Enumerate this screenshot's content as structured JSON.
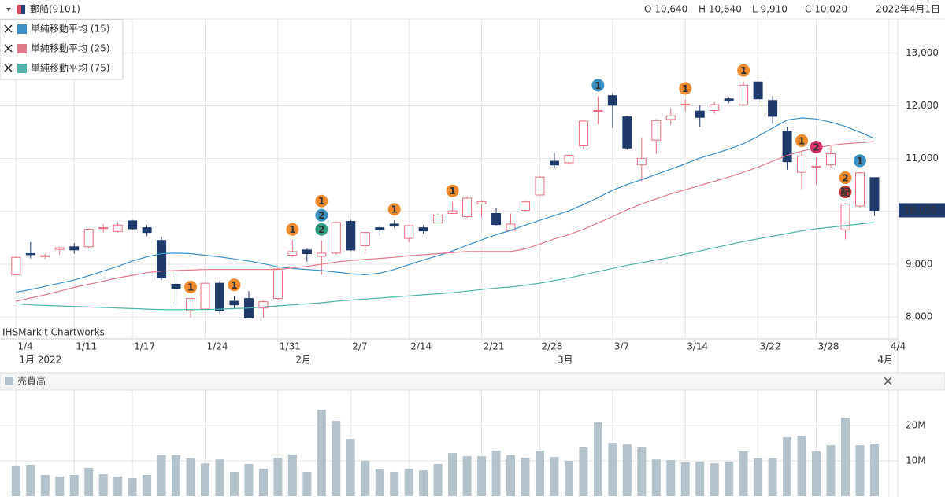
{
  "header": {
    "title": "郵船(9101)",
    "ohlc": [
      "O 10,640",
      "H 10,640",
      "L 9,910",
      "C 10,020"
    ],
    "date": "2022年4月1日",
    "watermark": "IHSMarkit Chartworks"
  },
  "chart_data": [
    {
      "type": "candlestick",
      "xlim": [
        -1.1,
        60.6
      ],
      "xticks": [
        {
          "value": 0,
          "label": "1/4"
        },
        {
          "value": 4,
          "label": "1/11"
        },
        {
          "value": 8,
          "label": "1/17"
        },
        {
          "value": 13,
          "label": "1/24"
        },
        {
          "value": 18,
          "label": "1/31"
        },
        {
          "value": 23,
          "label": "2/7"
        },
        {
          "value": 27,
          "label": "2/14"
        },
        {
          "value": 32,
          "label": "2/21"
        },
        {
          "value": 36,
          "label": "2/28"
        },
        {
          "value": 41,
          "label": "3/7"
        },
        {
          "value": 46,
          "label": "3/14"
        },
        {
          "value": 51,
          "label": "3/22"
        },
        {
          "value": 55,
          "label": "3/28"
        },
        {
          "value": 60,
          "label": "4/4"
        }
      ],
      "months": [
        {
          "value": 0,
          "label": "1月 2022"
        },
        {
          "value": 19,
          "label": "2月"
        },
        {
          "value": 37,
          "label": "3月"
        },
        {
          "value": 59,
          "label": "4月"
        }
      ],
      "ylim": [
        7600,
        13630
      ],
      "yticks": [
        {
          "value": 8000,
          "label": "8,000"
        },
        {
          "value": 9000,
          "label": "9,000"
        },
        {
          "value": 10000,
          "label": "10,000"
        },
        {
          "value": 11000,
          "label": "11,000"
        },
        {
          "value": 12000,
          "label": "12,000"
        },
        {
          "value": 13000,
          "label": "13,000"
        }
      ],
      "grid": true,
      "up_color": "#e8707f",
      "down_color": "#1f3a68",
      "open": [
        8800,
        9200,
        9150,
        9280,
        9330,
        9330,
        9680,
        9620,
        9820,
        9690,
        9450,
        8620,
        8120,
        8150,
        8640,
        8300,
        8350,
        8170,
        8350,
        9170,
        9270,
        9150,
        9210,
        9810,
        9350,
        9690,
        9760,
        9490,
        9690,
        9780,
        9960,
        9900,
        10140,
        9960,
        9640,
        10020,
        10310,
        10950,
        10920,
        11240,
        11900,
        12190,
        11790,
        10880,
        11350,
        11740,
        12020,
        11900,
        11910,
        12130,
        12020,
        12450,
        12100,
        11520,
        10740,
        10840,
        10880,
        9650,
        10100,
        10640
      ],
      "high": [
        9150,
        9420,
        9200,
        9330,
        9400,
        9680,
        9750,
        9800,
        9840,
        9740,
        9520,
        8830,
        8360,
        8650,
        8680,
        8400,
        8490,
        8320,
        8930,
        9450,
        9300,
        9450,
        9810,
        9840,
        9610,
        9720,
        9830,
        9740,
        9740,
        9960,
        10180,
        10280,
        10210,
        10060,
        9960,
        10200,
        10670,
        11110,
        11090,
        11720,
        12180,
        12240,
        11810,
        11390,
        11750,
        11950,
        12120,
        12010,
        12070,
        12160,
        12460,
        12460,
        12180,
        11600,
        11130,
        11010,
        11230,
        10160,
        10750,
        10640
      ],
      "low": [
        8790,
        9110,
        9100,
        9180,
        9200,
        9300,
        9600,
        9600,
        9650,
        9530,
        8700,
        8220,
        7990,
        8130,
        8070,
        8150,
        7980,
        7990,
        8330,
        9140,
        9050,
        8800,
        9180,
        9250,
        9200,
        9540,
        9690,
        9420,
        9580,
        9770,
        9950,
        9880,
        9870,
        9730,
        9640,
        10000,
        10300,
        10830,
        10900,
        11170,
        11650,
        11580,
        11170,
        10570,
        11090,
        11640,
        11890,
        11600,
        11850,
        12050,
        12000,
        12020,
        11660,
        10790,
        10420,
        10510,
        10830,
        9470,
        10070,
        9910
      ],
      "close": [
        9130,
        9180,
        9160,
        9310,
        9270,
        9660,
        9690,
        9740,
        9670,
        9600,
        8740,
        8530,
        8350,
        8640,
        8120,
        8230,
        7980,
        8290,
        8910,
        9240,
        9200,
        9210,
        9790,
        9270,
        9600,
        9650,
        9720,
        9730,
        9630,
        9930,
        10010,
        10250,
        10180,
        9750,
        9760,
        10180,
        10650,
        10880,
        11060,
        11710,
        11910,
        12010,
        11200,
        11000,
        11720,
        11810,
        12030,
        11780,
        12020,
        12100,
        12390,
        12130,
        11800,
        10940,
        11050,
        10850,
        11090,
        10140,
        10730,
        10020
      ],
      "series": [
        {
          "name": "単純移動平均 (15)",
          "color": "#3d8fc5",
          "values": [
            8470,
            8520,
            8580,
            8640,
            8700,
            8780,
            8870,
            8960,
            9060,
            9140,
            9200,
            9210,
            9200,
            9170,
            9140,
            9100,
            9060,
            9010,
            8950,
            8920,
            8900,
            8880,
            8850,
            8820,
            8800,
            8830,
            8900,
            8990,
            9080,
            9160,
            9250,
            9360,
            9460,
            9560,
            9640,
            9740,
            9830,
            9920,
            10010,
            10130,
            10260,
            10400,
            10510,
            10600,
            10700,
            10800,
            10900,
            11010,
            11090,
            11180,
            11280,
            11420,
            11580,
            11730,
            11770,
            11750,
            11690,
            11610,
            11500,
            11380
          ]
        },
        {
          "name": "単純移動平均 (25)",
          "color": "#e07b8b",
          "values": [
            8300,
            8360,
            8420,
            8490,
            8560,
            8620,
            8680,
            8740,
            8790,
            8840,
            8870,
            8880,
            8890,
            8900,
            8900,
            8900,
            8900,
            8900,
            8900,
            8930,
            8960,
            9000,
            9040,
            9070,
            9090,
            9110,
            9130,
            9160,
            9180,
            9200,
            9220,
            9240,
            9240,
            9240,
            9240,
            9290,
            9380,
            9480,
            9560,
            9660,
            9780,
            9900,
            10030,
            10140,
            10240,
            10330,
            10410,
            10490,
            10570,
            10650,
            10740,
            10840,
            10950,
            11060,
            11140,
            11200,
            11250,
            11280,
            11300,
            11320
          ]
        },
        {
          "name": "単純移動平均 (75)",
          "color": "#4fb3a7",
          "values": [
            8250,
            8230,
            8220,
            8210,
            8200,
            8190,
            8180,
            8170,
            8160,
            8150,
            8140,
            8140,
            8140,
            8140,
            8150,
            8160,
            8170,
            8190,
            8210,
            8230,
            8250,
            8270,
            8300,
            8320,
            8340,
            8360,
            8380,
            8400,
            8420,
            8440,
            8460,
            8490,
            8520,
            8550,
            8570,
            8600,
            8640,
            8690,
            8740,
            8800,
            8860,
            8920,
            8980,
            9030,
            9080,
            9130,
            9190,
            9250,
            9310,
            9370,
            9430,
            9480,
            9530,
            9580,
            9630,
            9670,
            9700,
            9730,
            9760,
            9790
          ]
        }
      ],
      "last_price": {
        "value": 10020,
        "label": "10,020"
      },
      "events": [
        {
          "index": 12,
          "label": "1",
          "color": "#ef8a2d"
        },
        {
          "index": 15,
          "label": "1",
          "color": "#ef8a2d"
        },
        {
          "index": 19,
          "label": "1",
          "color": "#ef8a2d"
        },
        {
          "index": 21,
          "label": "2",
          "color": "#2f9e80"
        },
        {
          "index": 21,
          "label": "2",
          "color": "#3a8fc0"
        },
        {
          "index": 21,
          "label": "1",
          "color": "#ef8a2d"
        },
        {
          "index": 26,
          "label": "1",
          "color": "#ef8a2d"
        },
        {
          "index": 30,
          "label": "1",
          "color": "#ef8a2d"
        },
        {
          "index": 40,
          "label": "1",
          "color": "#3a8fc0"
        },
        {
          "index": 46,
          "label": "1",
          "color": "#ef8a2d"
        },
        {
          "index": 50,
          "label": "1",
          "color": "#ef8a2d"
        },
        {
          "index": 54,
          "label": "1",
          "color": "#ef8a2d"
        },
        {
          "index": 55,
          "label": "2",
          "color": "#d6336c"
        },
        {
          "index": 57,
          "label": "配",
          "color": "#d23b3b"
        },
        {
          "index": 57,
          "label": "2",
          "color": "#ef8a2d"
        },
        {
          "index": 58,
          "label": "1",
          "color": "#3a8fc0"
        }
      ]
    },
    {
      "type": "bar",
      "title": "売買高",
      "color": "#b4c2cc",
      "xlim": [
        -1.1,
        60.6
      ],
      "ylim": [
        0,
        30000000
      ],
      "yticks": [
        {
          "value": 10000000,
          "label": "10M"
        },
        {
          "value": 20000000,
          "label": "20M"
        }
      ],
      "values": [
        8700000,
        8900000,
        6000000,
        5600000,
        6000000,
        8000000,
        6200000,
        5600000,
        5100000,
        6000000,
        11600000,
        11600000,
        10700000,
        9300000,
        10400000,
        6900000,
        9100000,
        7800000,
        10900000,
        11800000,
        6900000,
        24400000,
        21300000,
        16200000,
        10000000,
        7600000,
        6900000,
        7800000,
        7300000,
        9100000,
        12200000,
        11300000,
        11300000,
        12900000,
        11600000,
        10900000,
        12900000,
        11100000,
        10000000,
        13800000,
        20900000,
        15100000,
        14700000,
        13800000,
        10400000,
        10200000,
        9600000,
        9800000,
        9300000,
        9800000,
        12700000,
        10700000,
        10700000,
        16700000,
        17100000,
        12700000,
        14400000,
        22200000,
        14400000,
        14900000
      ]
    }
  ]
}
